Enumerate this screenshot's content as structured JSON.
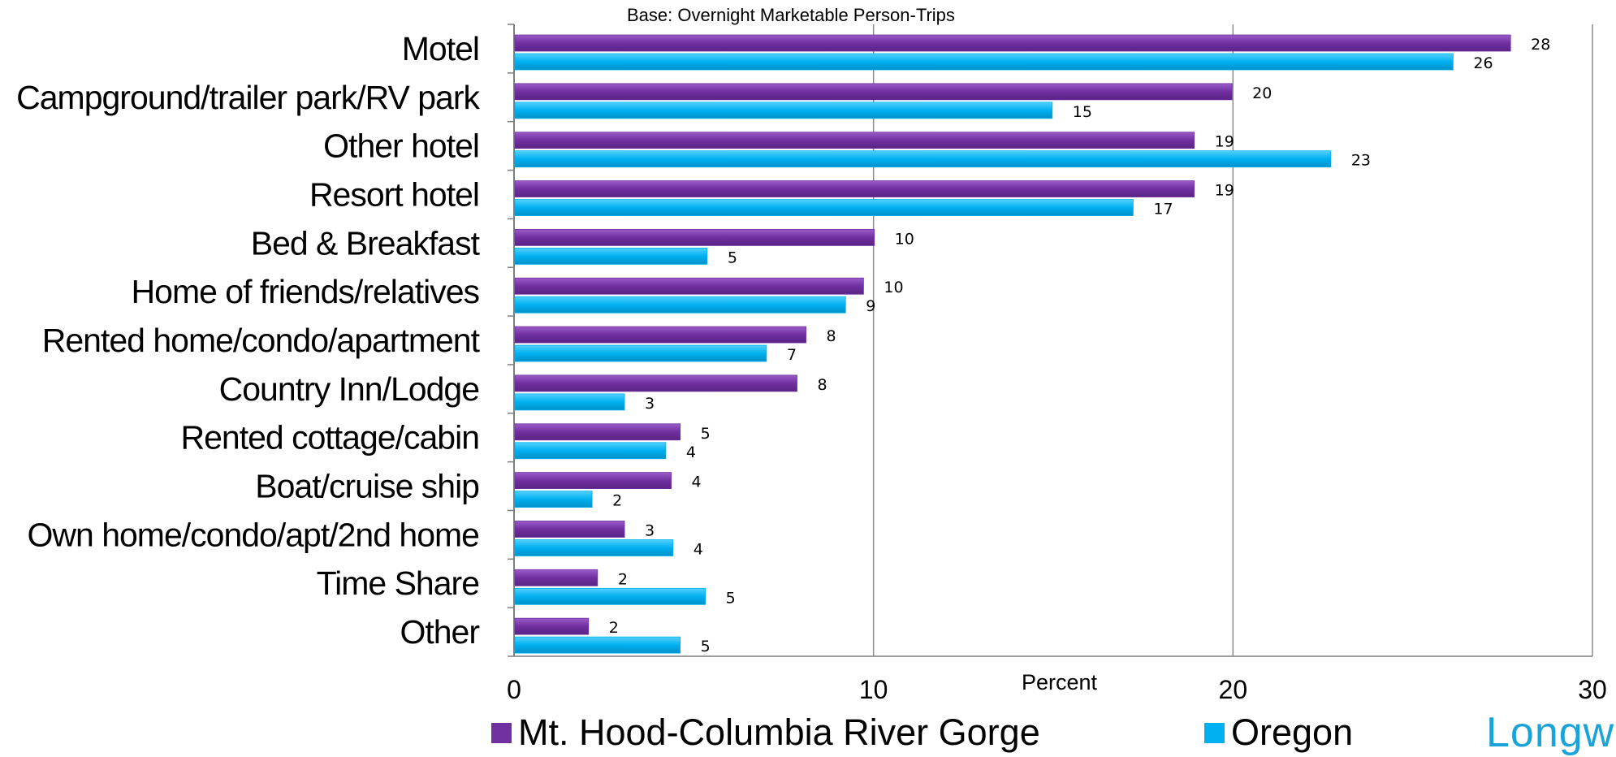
{
  "subtitle": "Base: Overnight Marketable Person-Trips",
  "logo_text": "Longw",
  "chart_data": {
    "type": "bar",
    "orientation": "horizontal",
    "categories": [
      "Motel",
      "Campground/trailer park/RV park",
      "Other hotel",
      "Resort hotel",
      "Bed & Breakfast",
      "Home of friends/relatives",
      "Rented home/condo/apartment",
      "Country Inn/Lodge",
      "Rented cottage/cabin",
      "Boat/cruise ship",
      "Own home/condo/apt/2nd home",
      "Time Share",
      "Other"
    ],
    "series": [
      {
        "name": "Mt. Hood-Columbia River Gorge",
        "color": "#7030a0",
        "values": [
          28,
          20,
          19,
          19,
          10,
          10,
          8,
          8,
          5,
          4,
          3,
          2,
          2
        ],
        "plot_values": [
          27.7,
          19.95,
          18.9,
          18.9,
          10.0,
          9.7,
          8.1,
          7.85,
          4.6,
          4.35,
          3.05,
          2.3,
          2.05
        ]
      },
      {
        "name": "Oregon",
        "color": "#00b0f0",
        "values": [
          26,
          15,
          23,
          17,
          5,
          9,
          7,
          3,
          4,
          2,
          4,
          5,
          5
        ],
        "plot_values": [
          26.1,
          14.95,
          22.7,
          17.2,
          5.35,
          9.2,
          7.0,
          3.05,
          4.2,
          2.15,
          4.4,
          5.3,
          4.6
        ]
      }
    ],
    "xlabel": "Percent",
    "xticks": [
      0,
      10,
      20,
      30
    ],
    "xlim": [
      0,
      30
    ],
    "grid": true,
    "legend_position": "bottom"
  }
}
